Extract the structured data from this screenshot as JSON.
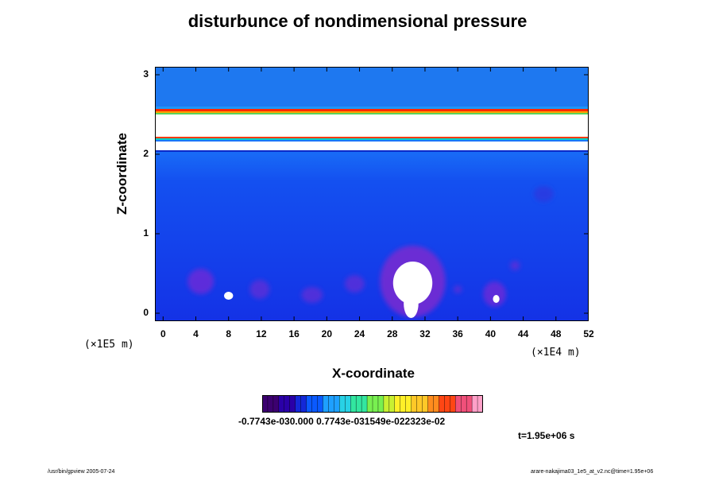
{
  "chart_data": {
    "type": "heatmap",
    "title": "disturbunce of nondimensional pressure",
    "xlabel": "X-coordinate",
    "ylabel": "Z-coordinate",
    "x_scale_note": "(×1E4 m)",
    "y_scale_note": "(×1E5 m)",
    "xlim": [
      -1,
      52
    ],
    "ylim": [
      -0.1,
      3.1
    ],
    "x_ticks": [
      "0",
      "4",
      "8",
      "12",
      "16",
      "20",
      "24",
      "28",
      "32",
      "36",
      "40",
      "44",
      "48",
      "52"
    ],
    "y_ticks": [
      "0",
      "1",
      "2",
      "3"
    ],
    "colorbar_labels": "-0.7743e-030.000 0.7743e-031549e-022323e-02",
    "colorbar_range": [
      -0.0077,
      0.0271
    ],
    "time": "t=1.95e+06 s",
    "bands": [
      {
        "z_from": 2.6,
        "z_to": 3.1,
        "color": "#1e78f0"
      },
      {
        "z_from": 2.54,
        "z_to": 2.57,
        "color": "#ff2800"
      },
      {
        "z_from": 2.52,
        "z_to": 2.54,
        "color": "#ffa000"
      },
      {
        "z_from": 2.5,
        "z_to": 2.52,
        "color": "#5ad25a"
      },
      {
        "z_from": 2.22,
        "z_to": 2.5,
        "color": "#ffffff"
      },
      {
        "z_from": 2.2,
        "z_to": 2.22,
        "color": "#ff3c00"
      },
      {
        "z_from": 2.18,
        "z_to": 2.2,
        "color": "#00d2c8"
      },
      {
        "z_from": 2.05,
        "z_to": 2.16,
        "color": "#ffffff"
      },
      {
        "z_from": 2.03,
        "z_to": 2.05,
        "color": "#0a28c8"
      }
    ],
    "features": [
      {
        "x": 30.5,
        "z": 0.38,
        "rx": 2.4,
        "rz": 0.27,
        "color": "#ffffff"
      },
      {
        "x": 30.3,
        "z": 0.12,
        "rx": 0.9,
        "rz": 0.18,
        "color": "#ffffff"
      },
      {
        "x": 8.0,
        "z": 0.22,
        "rx": 0.55,
        "rz": 0.05,
        "color": "#ffffff"
      },
      {
        "x": 40.7,
        "z": 0.18,
        "rx": 0.4,
        "rz": 0.05,
        "color": "#ffffff"
      }
    ],
    "blobs": [
      {
        "x": 4.6,
        "z": 0.4,
        "rx": 1.6,
        "rz": 0.16,
        "color": "#6a2cd8"
      },
      {
        "x": 11.8,
        "z": 0.3,
        "rx": 1.2,
        "rz": 0.12,
        "color": "#5a30d8"
      },
      {
        "x": 18.2,
        "z": 0.23,
        "rx": 1.3,
        "rz": 0.1,
        "color": "#5a30d8"
      },
      {
        "x": 23.4,
        "z": 0.37,
        "rx": 1.2,
        "rz": 0.11,
        "color": "#5a30d8"
      },
      {
        "x": 30.5,
        "z": 0.4,
        "rx": 4.0,
        "rz": 0.45,
        "color": "#7a28d0"
      },
      {
        "x": 36.0,
        "z": 0.3,
        "rx": 0.5,
        "rz": 0.05,
        "color": "#5a30d8"
      },
      {
        "x": 40.5,
        "z": 0.24,
        "rx": 1.4,
        "rz": 0.16,
        "color": "#6a2cd8"
      },
      {
        "x": 43.0,
        "z": 0.6,
        "rx": 0.6,
        "rz": 0.06,
        "color": "#5a30d8"
      },
      {
        "x": 46.5,
        "z": 1.5,
        "rx": 1.2,
        "rz": 0.1,
        "color": "#2a3ae0"
      }
    ],
    "colormap": [
      "#3c0070",
      "#2a00a8",
      "#1428d8",
      "#0a5aff",
      "#1ea0ff",
      "#28d2e6",
      "#32e6a0",
      "#78f050",
      "#c8f032",
      "#fff028",
      "#ffc828",
      "#ff8c1e",
      "#ff4614",
      "#f0507a",
      "#ffa0c8"
    ]
  },
  "footer": {
    "left": "/usr/bin/gpview 2005-07-24",
    "right": "arare-nakajima03_1e5_at_v2.nc@time=1.95e+06"
  }
}
